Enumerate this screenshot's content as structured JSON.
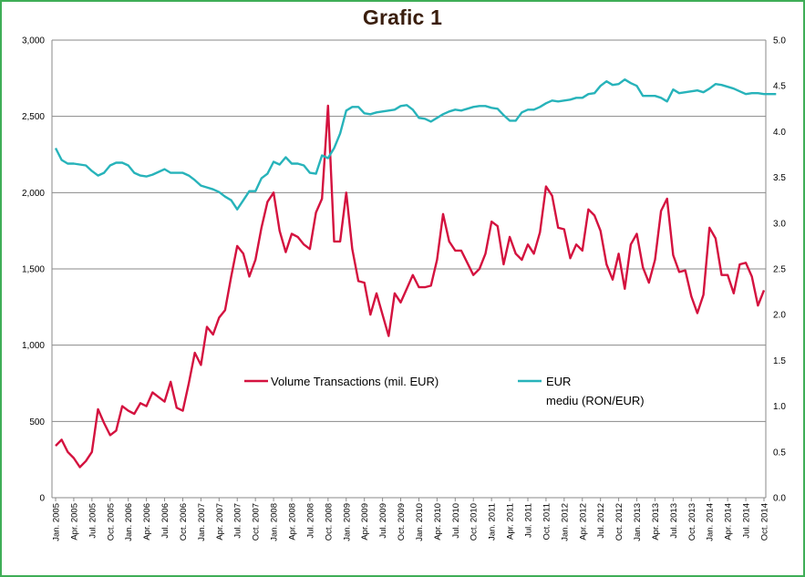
{
  "chart_data": {
    "type": "line",
    "title": "Grafic 1",
    "xlabel": "",
    "ylabel_left": "",
    "ylabel_right": "",
    "ylim_left": [
      0,
      3000
    ],
    "ylim_right": [
      0,
      5.0
    ],
    "grid": "horizontal",
    "legend_placement": "center",
    "y_ticks_left": [
      "0",
      "500",
      "1,000",
      "1,500",
      "2,000",
      "2,500",
      "3,000"
    ],
    "y_ticks_right": [
      "0.0",
      "0.5",
      "1.0",
      "1.5",
      "2.0",
      "2.5",
      "3.0",
      "3.5",
      "4.0",
      "4.5",
      "5.0"
    ],
    "x_tick_labels": [
      "Jan. 2005",
      "Apr. 2005",
      "Jul. 2005",
      "Oct. 2005",
      "Jan. 2006",
      "Apr. 2006",
      "Jul. 2006",
      "Oct. 2006",
      "Jan. 2007",
      "Apr. 2007",
      "Jul. 2007",
      "Oct. 2007",
      "Jan. 2008",
      "Apr. 2008",
      "Jul. 2008",
      "Oct. 2008",
      "Jan. 2009",
      "Apr. 2009",
      "Jul. 2009",
      "Oct. 2009",
      "Jan. 2010",
      "Apr. 2010",
      "Jul. 2010",
      "Oct. 2010",
      "Jan. 2011",
      "Apr. 2011",
      "Jul. 2011",
      "Oct. 2011",
      "Jan. 2012",
      "Apr. 2012",
      "Jul. 2012",
      "Oct. 2012",
      "Jan. 2013",
      "Apr. 2013",
      "Jul. 2013",
      "Oct. 2013",
      "Jan. 2014",
      "Apr. 2014",
      "Jul. 2014",
      "Oct. 2014"
    ],
    "series": [
      {
        "name": "Volume Transactions  (mil. EUR)",
        "axis": "left",
        "color": "#d4123f",
        "values": [
          340,
          380,
          300,
          260,
          200,
          240,
          300,
          580,
          490,
          410,
          440,
          600,
          570,
          550,
          620,
          600,
          690,
          660,
          630,
          760,
          590,
          570,
          750,
          950,
          870,
          1120,
          1070,
          1180,
          1230,
          1450,
          1650,
          1600,
          1450,
          1560,
          1770,
          1940,
          2000,
          1750,
          1610,
          1730,
          1710,
          1660,
          1630,
          1870,
          1960,
          2570,
          1680,
          1680,
          2000,
          1630,
          1420,
          1410,
          1200,
          1340,
          1200,
          1060,
          1340,
          1280,
          1370,
          1460,
          1380,
          1380,
          1390,
          1560,
          1860,
          1680,
          1620,
          1620,
          1540,
          1460,
          1500,
          1600,
          1810,
          1780,
          1530,
          1710,
          1600,
          1560,
          1660,
          1600,
          1740,
          2040,
          1980,
          1770,
          1760,
          1570,
          1660,
          1620,
          1890,
          1850,
          1750,
          1530,
          1430,
          1600,
          1370,
          1660,
          1730,
          1510,
          1410,
          1560,
          1880,
          1960,
          1590,
          1480,
          1490,
          1320,
          1210,
          1330,
          1770,
          1700,
          1460,
          1460,
          1340,
          1530,
          1540,
          1450,
          1260,
          1360
        ]
      },
      {
        "name": "EUR mediu (RON/EUR)",
        "axis": "right",
        "color": "#27b3ba",
        "values": [
          3.82,
          3.69,
          3.65,
          3.65,
          3.64,
          3.63,
          3.57,
          3.52,
          3.55,
          3.63,
          3.66,
          3.66,
          3.63,
          3.55,
          3.52,
          3.51,
          3.53,
          3.56,
          3.59,
          3.55,
          3.55,
          3.55,
          3.52,
          3.47,
          3.41,
          3.39,
          3.37,
          3.34,
          3.29,
          3.25,
          3.15,
          3.25,
          3.35,
          3.35,
          3.49,
          3.54,
          3.67,
          3.64,
          3.72,
          3.65,
          3.65,
          3.63,
          3.55,
          3.54,
          3.74,
          3.71,
          3.82,
          3.98,
          4.23,
          4.27,
          4.27,
          4.2,
          4.19,
          4.21,
          4.22,
          4.23,
          4.24,
          4.28,
          4.29,
          4.24,
          4.15,
          4.14,
          4.11,
          4.15,
          4.19,
          4.22,
          4.24,
          4.23,
          4.25,
          4.27,
          4.28,
          4.28,
          4.26,
          4.25,
          4.18,
          4.12,
          4.12,
          4.21,
          4.24,
          4.24,
          4.27,
          4.31,
          4.34,
          4.33,
          4.34,
          4.35,
          4.37,
          4.37,
          4.41,
          4.42,
          4.5,
          4.55,
          4.51,
          4.52,
          4.57,
          4.53,
          4.5,
          4.39,
          4.39,
          4.39,
          4.37,
          4.33,
          4.46,
          4.42,
          4.43,
          4.44,
          4.45,
          4.43,
          4.47,
          4.52,
          4.51,
          4.49,
          4.47,
          4.44,
          4.41,
          4.42,
          4.42,
          4.41,
          4.41,
          4.41
        ]
      }
    ]
  }
}
